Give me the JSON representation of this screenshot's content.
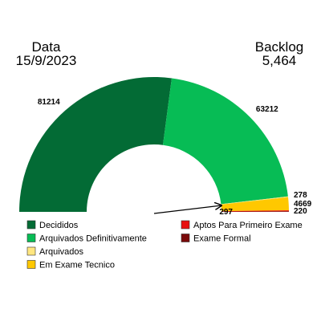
{
  "header": {
    "date_label": "Data",
    "date_value": "15/9/2023",
    "backlog_label": "Backlog",
    "backlog_value": "5,464"
  },
  "chart_data": {
    "type": "pie",
    "style": "half-donut",
    "slices": [
      {
        "name": "Decididos",
        "value": 81214,
        "label": "81214",
        "color": "#036B35"
      },
      {
        "name": "Arquivados Definitivamente",
        "value": 63212,
        "label": "63212",
        "color": "#07BC55"
      },
      {
        "name": "Arquivados",
        "value": 278,
        "label": "278",
        "color": "#FFE680"
      },
      {
        "name": "Em Exame Tecnico",
        "value": 4669,
        "label": "4669",
        "color": "#FFC800"
      },
      {
        "name": "Aptos Para Primeiro Exame",
        "value": 297,
        "label": "297",
        "color": "#E81010"
      },
      {
        "name": "Exame Formal",
        "value": 220,
        "label": "220",
        "color": "#7A0A0A"
      }
    ],
    "legend": {
      "placement": "bottom",
      "columns": [
        [
          "Decididos",
          "Arquivados Definitivamente",
          "Arquivados",
          "Em Exame Tecnico"
        ],
        [
          "Aptos Para Primeiro Exame",
          "Exame Formal"
        ]
      ]
    }
  }
}
